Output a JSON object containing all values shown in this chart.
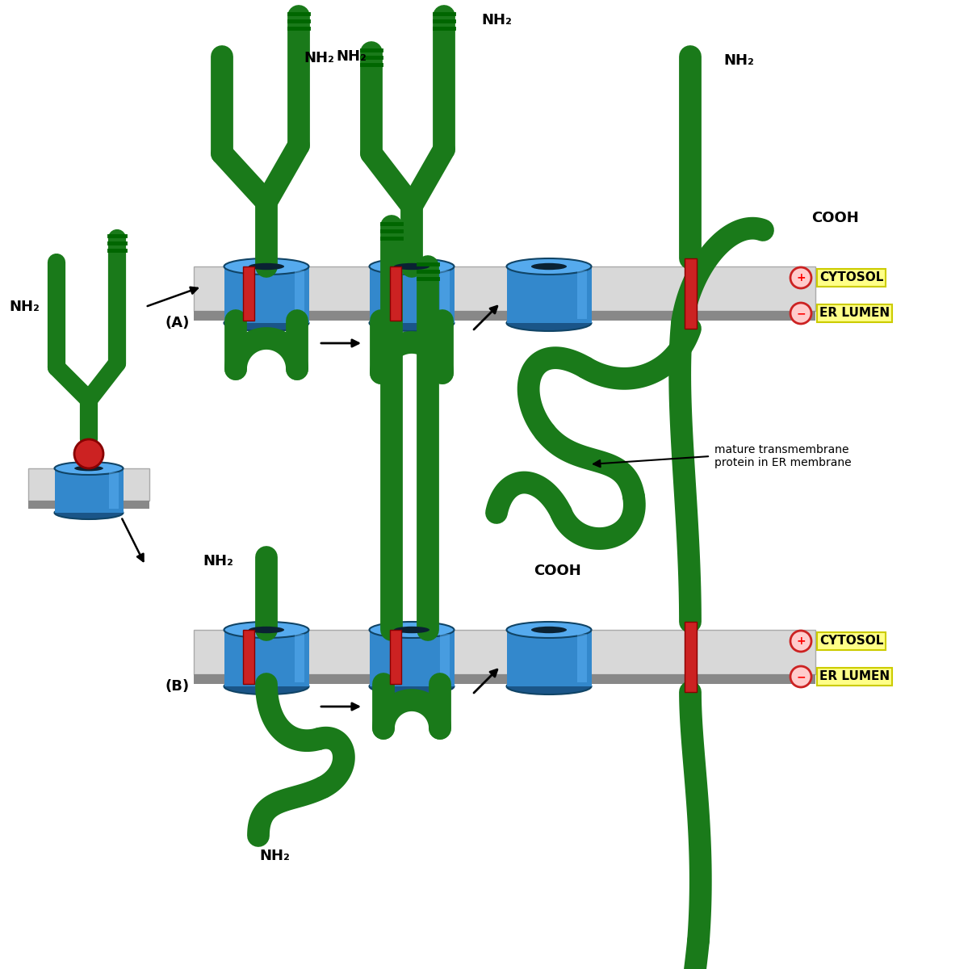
{
  "bg_color": "#ffffff",
  "green_color": "#1a7a1a",
  "blue_light": "#55aaee",
  "blue_mid": "#3388cc",
  "blue_dark": "#1a5588",
  "red_color": "#cc2222",
  "mem_light": "#d0d0d0",
  "mem_dark": "#888888",
  "yellow_bg": "#ffff88",
  "cytosol_label": "CYTOSOL",
  "erlumen_label": "ER LUMEN",
  "nh2_label": "NH₂",
  "cooh_label": "COOH",
  "mature_label": "mature transmembrane\nprotein in ER membrane",
  "panel_a_label": "(A)",
  "panel_b_label": "(B)"
}
